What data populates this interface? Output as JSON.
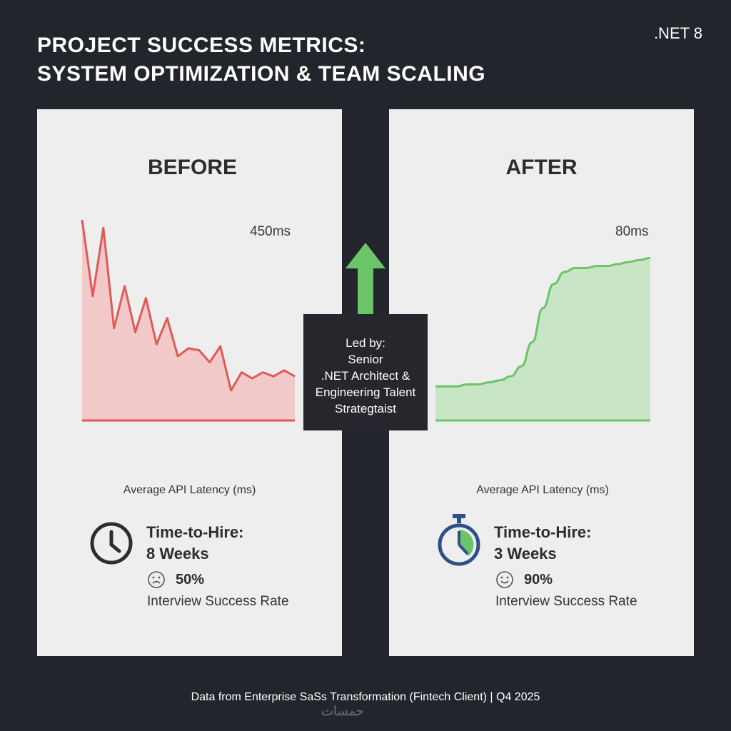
{
  "header": {
    "title_line1": "PROJECT SUCCESS METRICS:",
    "title_line2": "SYSTEM OPTIMIZATION & TEAM SCALING",
    "badge": ".NET 8"
  },
  "callout": {
    "line1": "Led by:",
    "line2": "Senior",
    "line3": ".NET Architect &",
    "line4": "Engineering Talent",
    "line5": "Strategtaist"
  },
  "before": {
    "heading": "BEFORE",
    "peak_label": "450ms",
    "caption": "Average API Latency (ms)",
    "metric_title_line1": "Time-to-Hire:",
    "metric_title_line2": "8 Weeks",
    "rate_value": "50%",
    "rate_label": "Interview Success Rate"
  },
  "after": {
    "heading": "AFTER",
    "peak_label": "80ms",
    "caption": "Average API Latency (ms)",
    "metric_title_line1": "Time-to-Hire:",
    "metric_title_line2": "3 Weeks",
    "rate_value": "90%",
    "rate_label": "Interview Success Rate"
  },
  "footer": "Data from Enterprise SaSs Transformation (Fintech Client) | Q4 2025",
  "watermark": "حمسات",
  "colors": {
    "background": "#22252b",
    "panel": "#eeeeee",
    "before_line": "#e05a57",
    "before_fill": "#f0c9c8",
    "after_line": "#6cc46a",
    "after_fill": "#c8e6c5",
    "arrow": "#6cc46a",
    "stopwatch": "#2f4f8a"
  },
  "chart_data": [
    {
      "type": "area",
      "title": "BEFORE",
      "xlabel": "Average API Latency (ms)",
      "ylabel": "",
      "x": [
        0,
        1,
        2,
        3,
        4,
        5,
        6,
        7,
        8,
        9,
        10,
        11,
        12,
        13,
        14,
        15,
        16,
        17,
        18,
        19,
        20
      ],
      "values": [
        100,
        62,
        96,
        46,
        67,
        44,
        61,
        38,
        51,
        32,
        36,
        35,
        29,
        37,
        15,
        24,
        21,
        24,
        22,
        25,
        22
      ],
      "ylim": [
        0,
        100
      ]
    },
    {
      "type": "area",
      "title": "AFTER",
      "xlabel": "Average API Latency (ms)",
      "ylabel": "",
      "x": [
        0,
        1,
        2,
        3,
        4,
        5,
        6,
        7,
        8,
        9,
        10,
        11,
        12,
        13,
        14,
        15,
        16,
        17,
        18,
        19,
        20
      ],
      "values": [
        17,
        17,
        17,
        18,
        18,
        19,
        20,
        22,
        27,
        39,
        56,
        68,
        74,
        76,
        76,
        77,
        77,
        78,
        79,
        80,
        81
      ],
      "ylim": [
        0,
        100
      ]
    }
  ]
}
